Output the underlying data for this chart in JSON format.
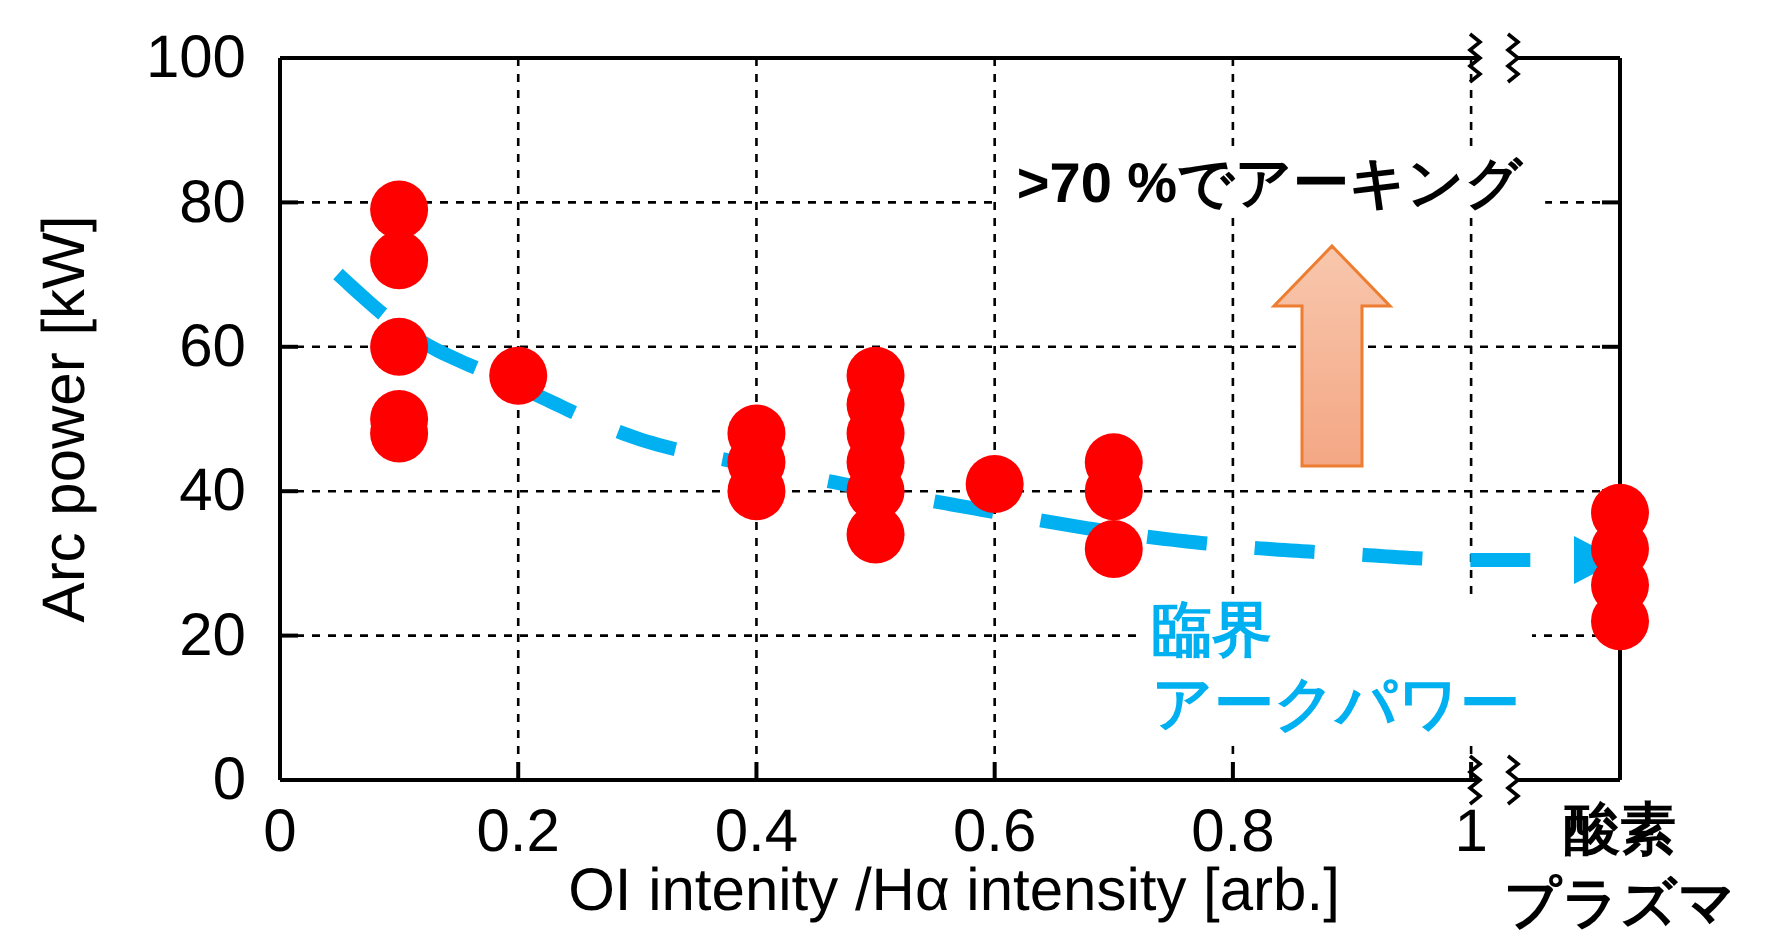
{
  "chart_data": {
    "type": "scatter",
    "xlabel": "OI intenity /Hα intensity [arb.]",
    "ylabel": "Arc power [kW]",
    "xlim": [
      0,
      1.125
    ],
    "ylim": [
      0,
      100
    ],
    "xticks": [
      0,
      0.2,
      0.4,
      0.6,
      0.8,
      1,
      {
        "value": 1.125,
        "label": "酸素プラズマ"
      }
    ],
    "yticks": [
      0,
      20,
      40,
      60,
      80,
      100
    ],
    "grid": true,
    "marker": "circle",
    "color": "#ff0000",
    "x": [
      0.1,
      0.1,
      0.1,
      0.1,
      0.1,
      0.2,
      0.4,
      0.4,
      0.4,
      0.5,
      0.5,
      0.5,
      0.5,
      0.5,
      0.5,
      0.6,
      0.7,
      0.7,
      0.7,
      1.125,
      1.125,
      1.125,
      1.125
    ],
    "values": [
      79,
      72,
      60,
      50,
      48,
      56,
      48,
      44,
      40,
      56,
      52,
      48,
      44,
      40,
      34,
      41,
      44,
      40,
      32,
      37,
      32,
      27,
      22
    ],
    "annotations": [
      ">70 %でアーキング",
      "臨界アークパワー"
    ]
  }
}
